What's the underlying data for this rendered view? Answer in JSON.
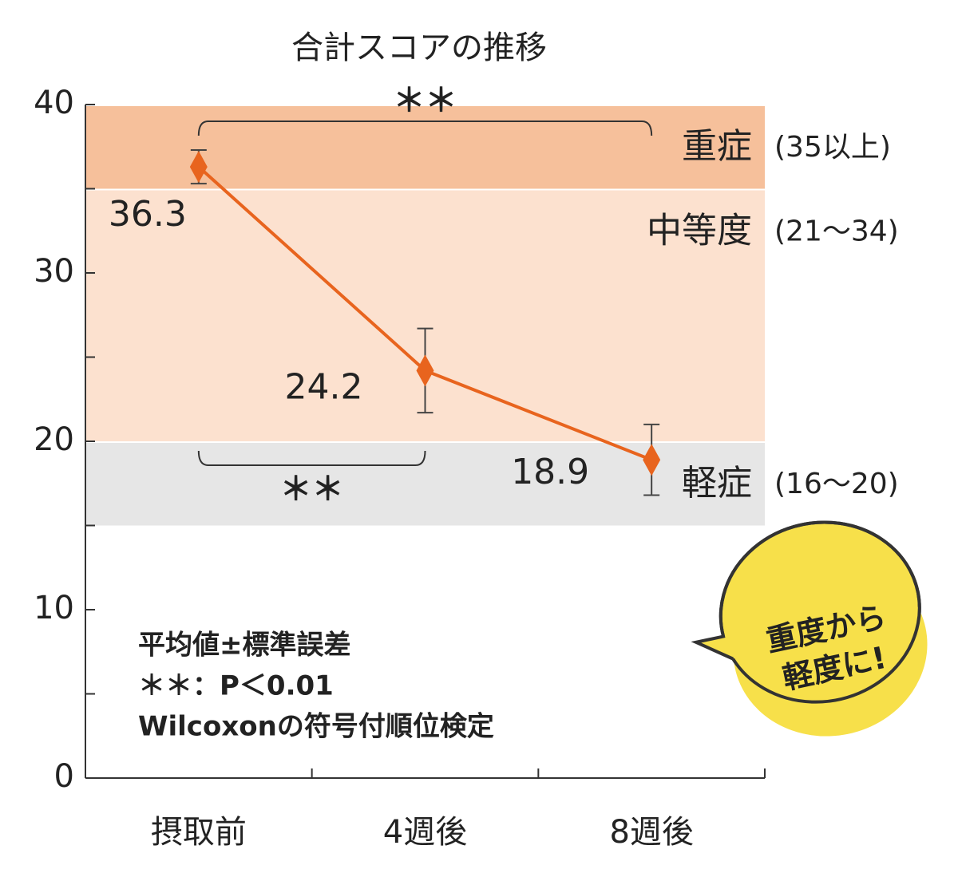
{
  "chart_data": {
    "type": "line",
    "title": "合計スコアの推移",
    "categories": [
      "摂取前",
      "4週後",
      "8週後"
    ],
    "series": [
      {
        "color": "#e8641e",
        "values": [
          36.3,
          24.2,
          18.9
        ],
        "errors": [
          1.0,
          2.5,
          2.1
        ]
      }
    ],
    "ylim": [
      0,
      40
    ],
    "yticks": [
      0,
      10,
      20,
      30,
      40
    ],
    "minor_yticks": [
      5,
      15,
      25,
      35
    ],
    "bands": [
      {
        "from": 35,
        "to": 40,
        "label": "重症",
        "range_label": "(35以上)",
        "color": "#f6c09b"
      },
      {
        "from": 20,
        "to": 35,
        "label": "中等度",
        "range_label": "(21～34)",
        "color": "#fce1cf"
      },
      {
        "from": 15,
        "to": 20,
        "label": "軽症",
        "range_label": "(16～20)",
        "color": "#e6e6e6"
      }
    ],
    "brackets": [
      {
        "from": "摂取前",
        "to": "8週後",
        "label": "＊＊"
      },
      {
        "from": "摂取前",
        "to": "4週後",
        "label": "＊＊"
      }
    ],
    "notes": [
      "平均値±標準誤差",
      "＊＊：P＜0.01",
      "Wilcoxonの符号付順位検定"
    ],
    "callout": [
      "重度から",
      "軽度に!"
    ]
  }
}
